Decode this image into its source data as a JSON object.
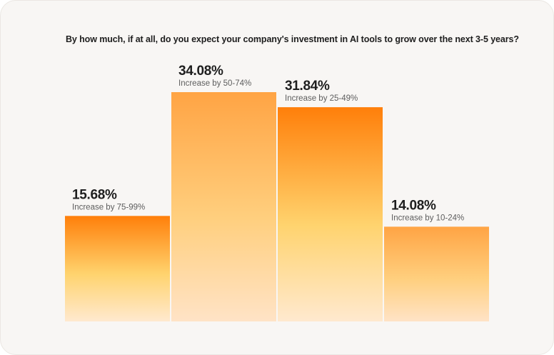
{
  "chart_data": {
    "type": "bar",
    "title": "By how much, if at all, do you expect your company's investment in AI tools to grow over the next 3-5 years?",
    "categories": [
      "Increase by 75-99%",
      "Increase by 50-74%",
      "Increase by 25-49%",
      "Increase by 10-24%"
    ],
    "values": [
      15.68,
      34.08,
      31.84,
      14.08
    ],
    "value_labels": [
      "15.68%",
      "34.08%",
      "31.84%",
      "14.08%"
    ],
    "unit": "%",
    "ylim": [
      0,
      34.08
    ],
    "grid": false,
    "legend": "none",
    "colors": {
      "gradient_a_top": "#ff7f0a",
      "gradient_a_mid": "#ffd36e",
      "gradient_a_bottom": "#ffe9cf",
      "gradient_b_top": "#ffa444",
      "gradient_b_mid": "#ffcf7e",
      "gradient_b_bottom": "#ffe3c6"
    },
    "bar_fill_styles": [
      "a",
      "b",
      "a",
      "b"
    ]
  }
}
